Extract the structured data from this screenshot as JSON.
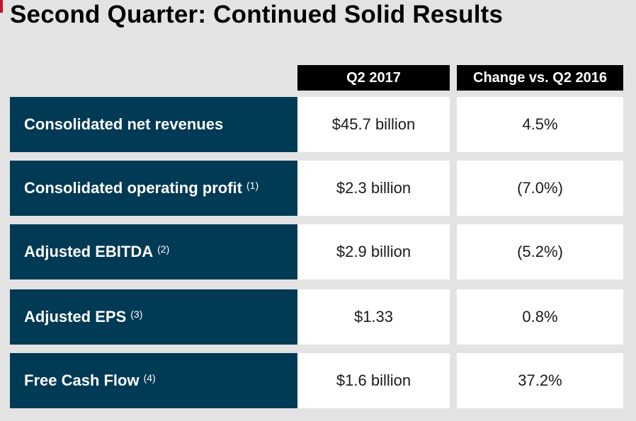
{
  "slide": {
    "title": "Second Quarter: Continued Solid Results",
    "accent_color": "#c8102e",
    "label_bg_color": "#003a54"
  },
  "table": {
    "headers": [
      "Q2 2017",
      "Change vs. Q2 2016"
    ],
    "rows": [
      {
        "label": "Consolidated net revenues",
        "footnote": "",
        "value": "$45.7 billion",
        "change": "4.5%"
      },
      {
        "label": "Consolidated operating profit",
        "footnote": "(1)",
        "value": "$2.3 billion",
        "change": "(7.0%)"
      },
      {
        "label": "Adjusted EBITDA",
        "footnote": "(2)",
        "value": "$2.9 billion",
        "change": "(5.2%)"
      },
      {
        "label": "Adjusted EPS",
        "footnote": "(3)",
        "value": "$1.33",
        "change": "0.8%"
      },
      {
        "label": "Free Cash Flow",
        "footnote": "(4)",
        "value": "$1.6 billion",
        "change": "37.2%"
      }
    ]
  }
}
